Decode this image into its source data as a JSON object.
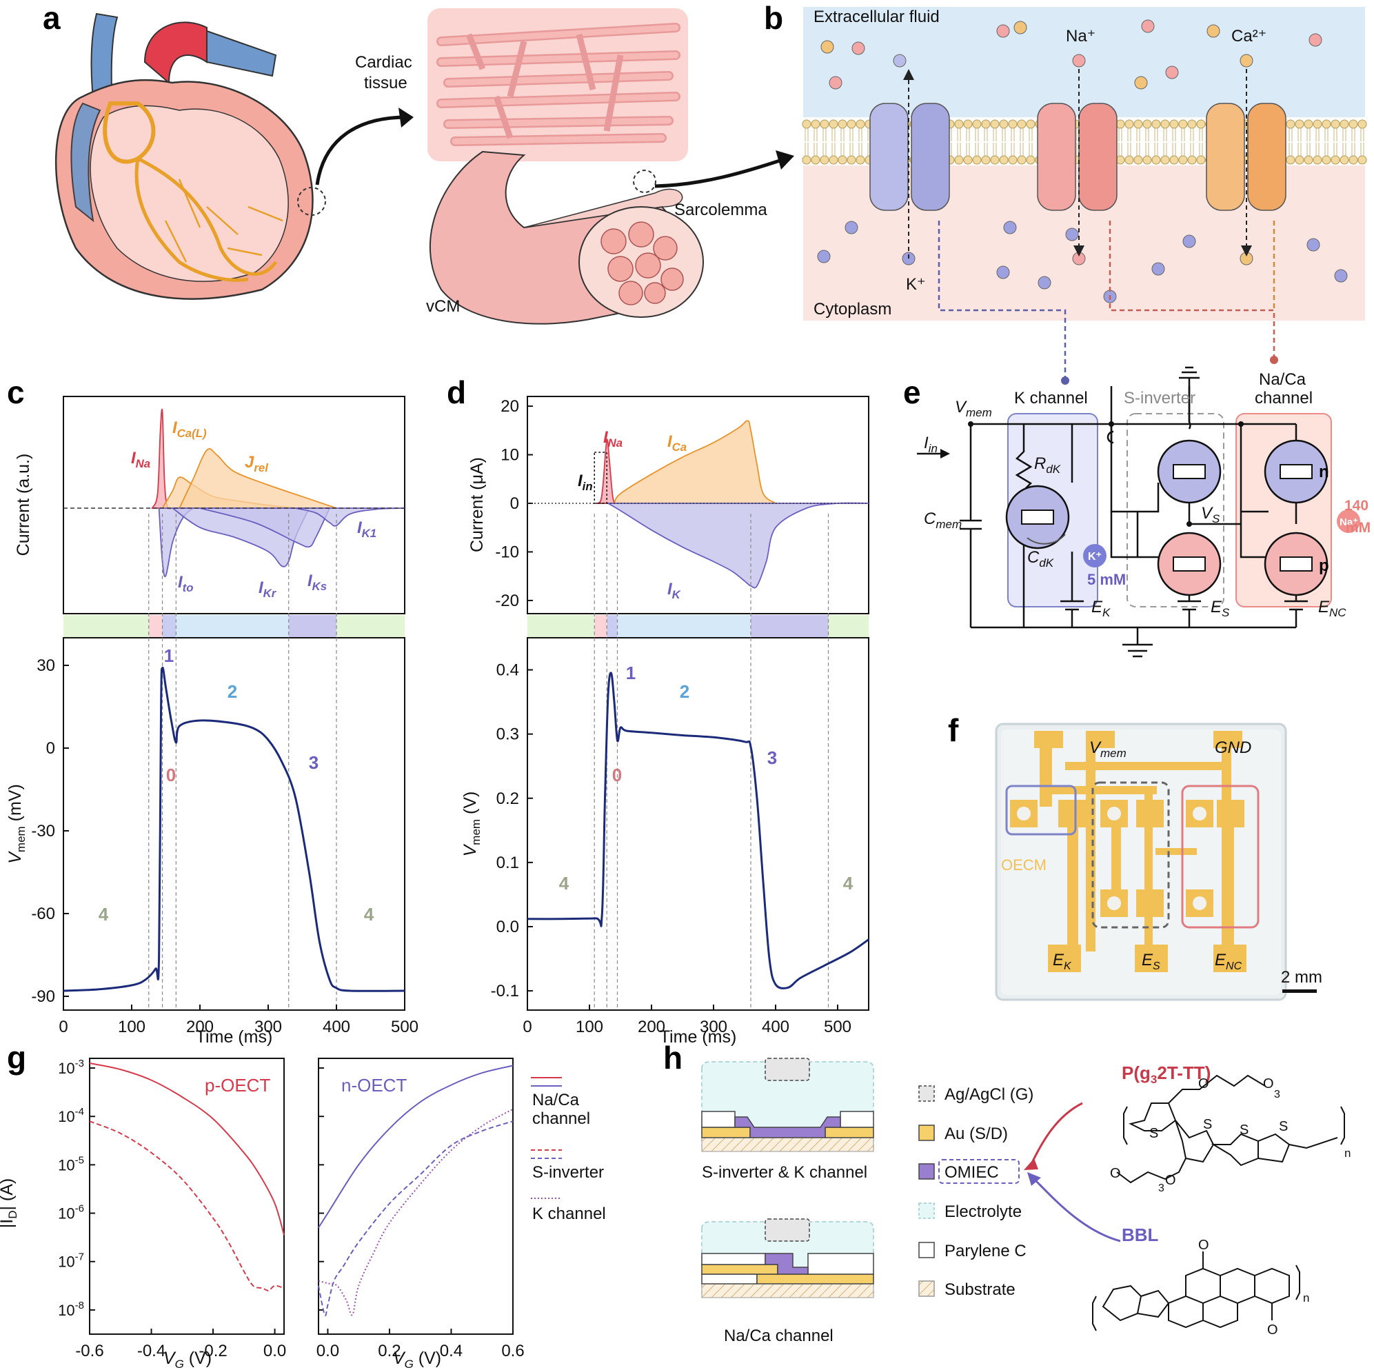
{
  "panels": {
    "a": {
      "letter": "a",
      "labels": {
        "cardiac_tissue_1": "Cardiac",
        "cardiac_tissue_2": "tissue",
        "sarcolemma": "Sarcolemma",
        "vcm": "vCM"
      }
    },
    "b": {
      "letter": "b",
      "labels": {
        "extracellular": "Extracellular fluid",
        "cytoplasm": "Cytoplasm",
        "na": "Na⁺",
        "ca": "Ca²⁺",
        "k": "K⁺"
      }
    },
    "c": {
      "letter": "c",
      "ylabel_top": "Current (a.u.)",
      "ylabel_bottom_main": "V",
      "ylabel_bottom_sub": "mem",
      "ylabel_bottom_unit": " (mV)",
      "xlabel": "Time (ms)",
      "current_labels": [
        {
          "main": "I",
          "sub": "Na",
          "color": "#d63a4a"
        },
        {
          "main": "I",
          "sub": "Ca(L)",
          "color": "#e8932b"
        },
        {
          "main": "J",
          "sub": "rel",
          "color": "#e8932b"
        },
        {
          "main": "I",
          "sub": "to",
          "color": "#6a5fc0"
        },
        {
          "main": "I",
          "sub": "Kr",
          "color": "#6a5fc0"
        },
        {
          "main": "I",
          "sub": "Ks",
          "color": "#6a5fc0"
        },
        {
          "main": "I",
          "sub": "K1",
          "color": "#6a5fc0"
        }
      ],
      "phases": [
        {
          "label": "0",
          "color": "#d27a80"
        },
        {
          "label": "1",
          "color": "#6a5fc0"
        },
        {
          "label": "2",
          "color": "#5aa3d6"
        },
        {
          "label": "3",
          "color": "#6a5fc0"
        },
        {
          "label": "4",
          "color": "#9aa68a"
        },
        {
          "label": "4",
          "color": "#9aa68a"
        }
      ]
    },
    "d": {
      "letter": "d",
      "ylabel_top": "Current (μA)",
      "ylabel_bottom_main": "V",
      "ylabel_bottom_sub": "mem",
      "ylabel_bottom_unit": " (V)",
      "xlabel": "Time (ms)",
      "current_labels": [
        {
          "main": "I",
          "sub": "Na",
          "color": "#d63a4a"
        },
        {
          "main": "I",
          "sub": "Ca",
          "color": "#e8932b"
        },
        {
          "main": "I",
          "sub": "in",
          "color": "#111111"
        },
        {
          "main": "I",
          "sub": "K",
          "color": "#6a5fc0"
        }
      ],
      "phases": [
        {
          "label": "0",
          "color": "#d27a80"
        },
        {
          "label": "1",
          "color": "#6a5fc0"
        },
        {
          "label": "2",
          "color": "#5aa3d6"
        },
        {
          "label": "3",
          "color": "#6a5fc0"
        },
        {
          "label": "4",
          "color": "#9aa68a"
        },
        {
          "label": "4",
          "color": "#9aa68a"
        }
      ]
    },
    "e": {
      "letter": "e",
      "labels": {
        "k_channel": "K channel",
        "s_inverter": "S-inverter",
        "nac_1": "Na/Ca",
        "nac_2": "channel",
        "vmem": "V",
        "vmem_sub": "mem",
        "iin": "I",
        "iin_sub": "in",
        "cmem": "C",
        "cmem_sub": "mem",
        "rdk": "R",
        "rdk_sub": "dK",
        "cdk": "C",
        "cdk_sub": "dK",
        "ek": "E",
        "ek_sub": "K",
        "es": "E",
        "es_sub": "S",
        "enc": "E",
        "enc_sub": "NC",
        "vs": "V",
        "vs_sub": "S",
        "k_ion": "K⁺",
        "k_conc": "5 mM",
        "na_ion": "Na⁺",
        "na_conc_1": "140",
        "na_conc_2": "mM",
        "n": "n",
        "p": "p"
      }
    },
    "f": {
      "letter": "f",
      "labels": {
        "vmem": "V",
        "vmem_sub": "mem",
        "gnd": "GND",
        "oecm": "OECM",
        "ek": "E",
        "ek_sub": "K",
        "es": "E",
        "es_sub": "S",
        "enc": "E",
        "enc_sub": "NC",
        "scale": "2 mm"
      }
    },
    "g": {
      "letter": "g",
      "left_title": "p-OECT",
      "right_title": "n-OECT",
      "xlabel_main": "V",
      "xlabel_sub": "G",
      "xlabel_unit": " (V)",
      "ylabel": "|I",
      "ylabel_sub": "D",
      "ylabel_unit": "| (A)",
      "legend": [
        "Na/Ca",
        "channel",
        "S-inverter",
        "K channel"
      ]
    },
    "h": {
      "letter": "h",
      "stack_titles": [
        "S-inverter & K channel",
        "Na/Ca channel"
      ],
      "legend": [
        "Ag/AgCl (G)",
        "Au (S/D)",
        "OMIEC",
        "Electrolyte",
        "Parylene C",
        "Substrate"
      ],
      "polymers": {
        "p_main": "P(g",
        "p_sub": "3",
        "p_rest": "2T-TT)",
        "bbl": "BBL",
        "n": "n",
        "s": "S",
        "o": "O",
        "three": "3"
      }
    }
  },
  "colors": {
    "red": "#d63a4a",
    "orange": "#e8932b",
    "purple": "#6a5fc0",
    "navy": "#1c2a7a",
    "pink_fill": "#f9d7d2",
    "blue_fill": "#b7b8e6"
  },
  "chart_data": [
    {
      "type": "line",
      "panel": "c-top",
      "ylabel": "Current (a.u.)",
      "xlim": [
        0,
        500
      ],
      "series": [
        {
          "name": "INa",
          "x": [
            130,
            138,
            142,
            145,
            148,
            152,
            160
          ],
          "values": [
            0,
            0.15,
            0.8,
            1.0,
            0.3,
            0.02,
            0
          ]
        },
        {
          "name": "ICa(L)",
          "x": [
            145,
            160,
            170,
            190,
            220,
            260,
            300,
            340
          ],
          "values": [
            0,
            0.18,
            0.32,
            0.24,
            0.12,
            0.07,
            0.03,
            0
          ]
        },
        {
          "name": "Jrel",
          "x": [
            170,
            190,
            210,
            225,
            250,
            300,
            350,
            400
          ],
          "values": [
            0,
            0.3,
            0.6,
            0.55,
            0.38,
            0.24,
            0.12,
            0
          ]
        },
        {
          "name": "Ito",
          "x": [
            140,
            145,
            150,
            160,
            175,
            190
          ],
          "values": [
            0,
            -0.55,
            -0.7,
            -0.35,
            -0.1,
            0
          ]
        },
        {
          "name": "IKr",
          "x": [
            160,
            200,
            250,
            300,
            320,
            330,
            340,
            360
          ],
          "values": [
            0,
            -0.2,
            -0.3,
            -0.45,
            -0.6,
            -0.55,
            -0.3,
            0
          ]
        },
        {
          "name": "IKs",
          "x": [
            200,
            280,
            340,
            360,
            370,
            390
          ],
          "values": [
            0,
            -0.15,
            -0.35,
            -0.4,
            -0.3,
            0
          ]
        },
        {
          "name": "IK1",
          "x": [
            340,
            370,
            390,
            400,
            420,
            460,
            500
          ],
          "values": [
            0,
            -0.05,
            -0.15,
            -0.18,
            -0.06,
            -0.01,
            0
          ]
        }
      ]
    },
    {
      "type": "line",
      "panel": "c-bottom",
      "xlabel": "Time (ms)",
      "ylabel": "Vmem (mV)",
      "xlim": [
        0,
        500
      ],
      "ylim": [
        -95,
        40
      ],
      "xticks": [
        0,
        100,
        200,
        300,
        400,
        500
      ],
      "yticks": [
        -90,
        -60,
        -30,
        0,
        30
      ],
      "series": [
        {
          "name": "Vmem",
          "x": [
            0,
            50,
            100,
            120,
            135,
            140,
            143,
            145,
            150,
            158,
            165,
            170,
            200,
            250,
            280,
            300,
            320,
            340,
            360,
            375,
            390,
            400,
            420,
            500
          ],
          "values": [
            -88,
            -87.5,
            -86,
            -84,
            -80,
            -76,
            15,
            29,
            22,
            10,
            2,
            8,
            10,
            9,
            7,
            3,
            -5,
            -18,
            -45,
            -70,
            -84,
            -87,
            -88,
            -88
          ]
        }
      ]
    },
    {
      "type": "line",
      "panel": "d-top",
      "ylabel": "Current (μA)",
      "xlim": [
        0,
        550
      ],
      "ylim": [
        -22,
        22
      ],
      "yticks": [
        -20,
        -10,
        0,
        10,
        20
      ],
      "series": [
        {
          "name": "INa",
          "x": [
            110,
            118,
            122,
            128,
            132,
            138,
            145
          ],
          "values": [
            0,
            0.5,
            4,
            13,
            9,
            1,
            0
          ]
        },
        {
          "name": "ICa",
          "x": [
            140,
            150,
            200,
            250,
            300,
            340,
            355,
            360,
            370,
            380,
            400
          ],
          "values": [
            0,
            2,
            6,
            9.5,
            12.5,
            15.5,
            17,
            15,
            8,
            2,
            0
          ]
        },
        {
          "name": "IK",
          "x": [
            130,
            150,
            200,
            250,
            300,
            330,
            350,
            360,
            370,
            385,
            400,
            450,
            500,
            550
          ],
          "values": [
            0,
            -1.5,
            -5.5,
            -9,
            -12,
            -14,
            -16,
            -17,
            -17,
            -12,
            -5,
            -1,
            0,
            0
          ]
        }
      ]
    },
    {
      "type": "line",
      "panel": "d-bottom",
      "xlabel": "Time (ms)",
      "ylabel": "Vmem (V)",
      "xlim": [
        0,
        550
      ],
      "ylim": [
        -0.13,
        0.45
      ],
      "xticks": [
        0,
        100,
        200,
        300,
        400,
        500
      ],
      "yticks": [
        -0.1,
        0,
        0.1,
        0.2,
        0.3,
        0.4
      ],
      "series": [
        {
          "name": "Vmem",
          "x": [
            0,
            50,
            110,
            120,
            125,
            130,
            135,
            140,
            145,
            150,
            160,
            200,
            250,
            300,
            350,
            360,
            370,
            380,
            390,
            400,
            420,
            440,
            480,
            520,
            550
          ],
          "values": [
            0.012,
            0.012,
            0.013,
            0.015,
            0.2,
            0.36,
            0.395,
            0.35,
            0.29,
            0.31,
            0.305,
            0.302,
            0.298,
            0.295,
            0.288,
            0.28,
            0.2,
            0.07,
            -0.05,
            -0.09,
            -0.095,
            -0.08,
            -0.06,
            -0.04,
            -0.02
          ]
        }
      ]
    },
    {
      "type": "line",
      "panel": "g-left",
      "title": "p-OECT",
      "xlim": [
        -0.6,
        0.03
      ],
      "ylim_log10": [
        -8.5,
        -2.8
      ],
      "xticks": [
        -0.6,
        -0.4,
        -0.2,
        0.0
      ],
      "series": [
        {
          "name": "Na/Ca channel",
          "x": [
            -0.6,
            -0.5,
            -0.4,
            -0.3,
            -0.2,
            -0.1,
            -0.05,
            0.0,
            0.03
          ],
          "log10_values": [
            -2.9,
            -3.03,
            -3.25,
            -3.6,
            -4.05,
            -4.75,
            -5.2,
            -5.8,
            -6.45
          ]
        },
        {
          "name": "S-inverter",
          "x": [
            -0.6,
            -0.5,
            -0.4,
            -0.3,
            -0.2,
            -0.15,
            -0.1,
            -0.07,
            -0.04,
            -0.02,
            0.0,
            0.03
          ],
          "log10_values": [
            -4.1,
            -4.35,
            -4.75,
            -5.3,
            -6.1,
            -6.6,
            -7.2,
            -7.5,
            -7.55,
            -7.6,
            -7.5,
            -7.55
          ]
        }
      ]
    },
    {
      "type": "line",
      "panel": "g-right",
      "title": "n-OECT",
      "xlim": [
        -0.03,
        0.6
      ],
      "ylim_log10": [
        -8.5,
        -2.8
      ],
      "xticks": [
        0.0,
        0.2,
        0.4,
        0.6
      ],
      "series": [
        {
          "name": "Na/Ca channel",
          "x": [
            -0.03,
            0.0,
            0.1,
            0.2,
            0.3,
            0.4,
            0.5,
            0.6
          ],
          "log10_values": [
            -6.3,
            -6.0,
            -5.0,
            -4.25,
            -3.7,
            -3.35,
            -3.1,
            -2.95
          ]
        },
        {
          "name": "S-inverter",
          "x": [
            -0.03,
            -0.01,
            0.0,
            0.02,
            0.05,
            0.1,
            0.2,
            0.3,
            0.4,
            0.5,
            0.6
          ],
          "log10_values": [
            -7.5,
            -8.1,
            -7.9,
            -7.4,
            -7.1,
            -6.6,
            -5.8,
            -5.2,
            -4.6,
            -4.3,
            -4.1
          ]
        },
        {
          "name": "K channel",
          "x": [
            -0.03,
            0.0,
            0.03,
            0.06,
            0.08,
            0.1,
            0.15,
            0.2,
            0.3,
            0.4,
            0.5,
            0.6
          ],
          "log10_values": [
            -7.4,
            -7.45,
            -7.5,
            -7.8,
            -8.1,
            -7.5,
            -6.8,
            -6.2,
            -5.4,
            -4.7,
            -4.2,
            -3.85
          ]
        }
      ]
    }
  ]
}
